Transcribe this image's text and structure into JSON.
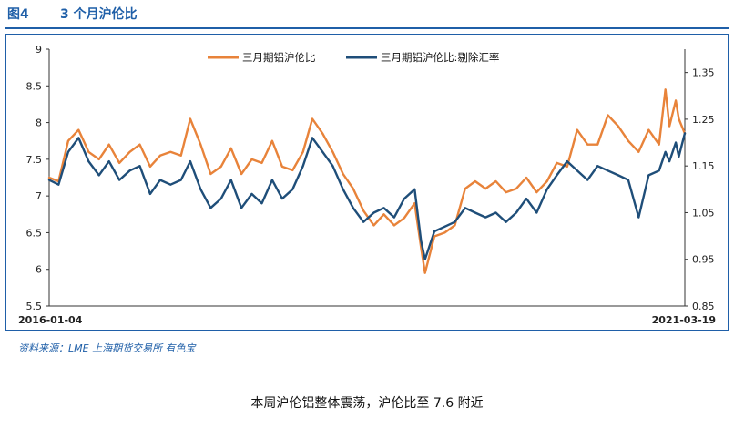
{
  "figure": {
    "number": "图4",
    "title": "3 个月沪伦比",
    "source": "资料来源：LME   上海期货交易所   有色宝",
    "caption": "本周沪伦铝整体震荡，沪伦比至 7.6 附近"
  },
  "chart_data": {
    "type": "line",
    "title": "",
    "xlabel": "",
    "ylabel": "",
    "x_range": [
      "2016-01-04",
      "2021-03-19"
    ],
    "x_tick_labels": [
      "2016-01-04",
      "2021-03-19"
    ],
    "ylim_left": [
      5.5,
      9
    ],
    "yticks_left": [
      5.5,
      6,
      6.5,
      7,
      7.5,
      8,
      8.5,
      9
    ],
    "ytick_labels_left": [
      "5.5",
      "6",
      "6.5",
      "7",
      "7.5",
      "8",
      "8.5",
      "9"
    ],
    "ylim_right": [
      0.85,
      1.4
    ],
    "yticks_right": [
      0.85,
      0.95,
      1.05,
      1.15,
      1.25,
      1.35
    ],
    "ytick_labels_right": [
      "0.85",
      "0.95",
      "1.05",
      "1.15",
      "1.25",
      "1.35"
    ],
    "grid": false,
    "legend_position": "top",
    "series": [
      {
        "name": "三月期铝沪伦比",
        "axis": "left",
        "color": "#e8833a",
        "points": [
          [
            "2016-01-04",
            7.25
          ],
          [
            "2016-02-01",
            7.2
          ],
          [
            "2016-03-01",
            7.75
          ],
          [
            "2016-04-01",
            7.9
          ],
          [
            "2016-05-01",
            7.6
          ],
          [
            "2016-06-01",
            7.5
          ],
          [
            "2016-07-01",
            7.7
          ],
          [
            "2016-08-01",
            7.45
          ],
          [
            "2016-09-01",
            7.6
          ],
          [
            "2016-10-01",
            7.7
          ],
          [
            "2016-11-01",
            7.4
          ],
          [
            "2016-12-01",
            7.55
          ],
          [
            "2017-01-01",
            7.6
          ],
          [
            "2017-02-01",
            7.55
          ],
          [
            "2017-03-01",
            8.05
          ],
          [
            "2017-04-01",
            7.7
          ],
          [
            "2017-05-01",
            7.3
          ],
          [
            "2017-06-01",
            7.4
          ],
          [
            "2017-07-01",
            7.65
          ],
          [
            "2017-08-01",
            7.3
          ],
          [
            "2017-09-01",
            7.5
          ],
          [
            "2017-10-01",
            7.45
          ],
          [
            "2017-11-01",
            7.75
          ],
          [
            "2017-12-01",
            7.4
          ],
          [
            "2018-01-01",
            7.35
          ],
          [
            "2018-02-01",
            7.6
          ],
          [
            "2018-03-01",
            8.05
          ],
          [
            "2018-04-01",
            7.85
          ],
          [
            "2018-05-01",
            7.6
          ],
          [
            "2018-06-01",
            7.3
          ],
          [
            "2018-07-01",
            7.1
          ],
          [
            "2018-08-01",
            6.8
          ],
          [
            "2018-09-01",
            6.6
          ],
          [
            "2018-10-01",
            6.75
          ],
          [
            "2018-11-01",
            6.6
          ],
          [
            "2018-12-01",
            6.7
          ],
          [
            "2019-01-01",
            6.9
          ],
          [
            "2019-01-20",
            6.3
          ],
          [
            "2019-02-01",
            5.95
          ],
          [
            "2019-03-01",
            6.45
          ],
          [
            "2019-04-01",
            6.5
          ],
          [
            "2019-05-01",
            6.6
          ],
          [
            "2019-06-01",
            7.1
          ],
          [
            "2019-07-01",
            7.2
          ],
          [
            "2019-08-01",
            7.1
          ],
          [
            "2019-09-01",
            7.2
          ],
          [
            "2019-10-01",
            7.05
          ],
          [
            "2019-11-01",
            7.1
          ],
          [
            "2019-12-01",
            7.25
          ],
          [
            "2020-01-01",
            7.05
          ],
          [
            "2020-02-01",
            7.2
          ],
          [
            "2020-03-01",
            7.45
          ],
          [
            "2020-04-01",
            7.4
          ],
          [
            "2020-05-01",
            7.9
          ],
          [
            "2020-06-01",
            7.7
          ],
          [
            "2020-07-01",
            7.7
          ],
          [
            "2020-08-01",
            8.1
          ],
          [
            "2020-09-01",
            7.95
          ],
          [
            "2020-10-01",
            7.75
          ],
          [
            "2020-11-01",
            7.6
          ],
          [
            "2020-12-01",
            7.9
          ],
          [
            "2021-01-01",
            7.7
          ],
          [
            "2021-01-20",
            8.45
          ],
          [
            "2021-02-01",
            7.95
          ],
          [
            "2021-02-20",
            8.3
          ],
          [
            "2021-03-01",
            8.05
          ],
          [
            "2021-03-19",
            7.85
          ]
        ]
      },
      {
        "name": "三月期铝沪伦比:剔除汇率",
        "axis": "right",
        "color": "#1f4e79",
        "points": [
          [
            "2016-01-04",
            1.12
          ],
          [
            "2016-02-01",
            1.11
          ],
          [
            "2016-03-01",
            1.18
          ],
          [
            "2016-04-01",
            1.21
          ],
          [
            "2016-05-01",
            1.16
          ],
          [
            "2016-06-01",
            1.13
          ],
          [
            "2016-07-01",
            1.16
          ],
          [
            "2016-08-01",
            1.12
          ],
          [
            "2016-09-01",
            1.14
          ],
          [
            "2016-10-01",
            1.15
          ],
          [
            "2016-11-01",
            1.09
          ],
          [
            "2016-12-01",
            1.12
          ],
          [
            "2017-01-01",
            1.11
          ],
          [
            "2017-02-01",
            1.12
          ],
          [
            "2017-03-01",
            1.16
          ],
          [
            "2017-04-01",
            1.1
          ],
          [
            "2017-05-01",
            1.06
          ],
          [
            "2017-06-01",
            1.08
          ],
          [
            "2017-07-01",
            1.12
          ],
          [
            "2017-08-01",
            1.06
          ],
          [
            "2017-09-01",
            1.09
          ],
          [
            "2017-10-01",
            1.07
          ],
          [
            "2017-11-01",
            1.12
          ],
          [
            "2017-12-01",
            1.08
          ],
          [
            "2018-01-01",
            1.1
          ],
          [
            "2018-02-01",
            1.15
          ],
          [
            "2018-03-01",
            1.21
          ],
          [
            "2018-04-01",
            1.18
          ],
          [
            "2018-05-01",
            1.15
          ],
          [
            "2018-06-01",
            1.1
          ],
          [
            "2018-07-01",
            1.06
          ],
          [
            "2018-08-01",
            1.03
          ],
          [
            "2018-09-01",
            1.05
          ],
          [
            "2018-10-01",
            1.06
          ],
          [
            "2018-11-01",
            1.04
          ],
          [
            "2018-12-01",
            1.08
          ],
          [
            "2019-01-01",
            1.1
          ],
          [
            "2019-01-20",
            0.99
          ],
          [
            "2019-02-01",
            0.95
          ],
          [
            "2019-03-01",
            1.01
          ],
          [
            "2019-04-01",
            1.02
          ],
          [
            "2019-05-01",
            1.03
          ],
          [
            "2019-06-01",
            1.06
          ],
          [
            "2019-07-01",
            1.05
          ],
          [
            "2019-08-01",
            1.04
          ],
          [
            "2019-09-01",
            1.05
          ],
          [
            "2019-10-01",
            1.03
          ],
          [
            "2019-11-01",
            1.05
          ],
          [
            "2019-12-01",
            1.08
          ],
          [
            "2020-01-01",
            1.05
          ],
          [
            "2020-02-01",
            1.1
          ],
          [
            "2020-03-01",
            1.13
          ],
          [
            "2020-04-01",
            1.16
          ],
          [
            "2020-05-01",
            1.14
          ],
          [
            "2020-06-01",
            1.12
          ],
          [
            "2020-07-01",
            1.15
          ],
          [
            "2020-08-01",
            1.14
          ],
          [
            "2020-09-01",
            1.13
          ],
          [
            "2020-10-01",
            1.12
          ],
          [
            "2020-11-01",
            1.04
          ],
          [
            "2020-12-01",
            1.13
          ],
          [
            "2021-01-01",
            1.14
          ],
          [
            "2021-01-20",
            1.18
          ],
          [
            "2021-02-01",
            1.16
          ],
          [
            "2021-02-20",
            1.2
          ],
          [
            "2021-03-01",
            1.17
          ],
          [
            "2021-03-19",
            1.22
          ]
        ]
      }
    ]
  }
}
